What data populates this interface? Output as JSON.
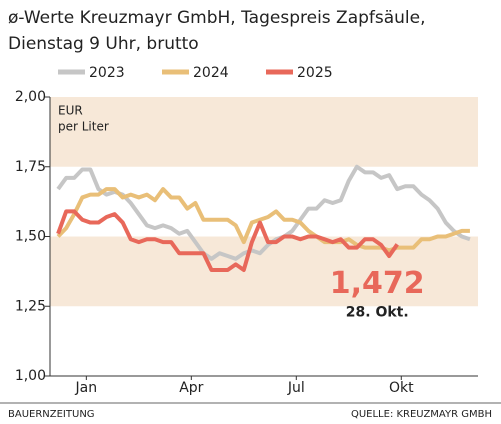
{
  "chart_data": {
    "type": "line",
    "title": [
      "ø-Werte Kreuzmayr GmbH, Tagespreis Zapfsäule,",
      "Dienstag 9 Uhr, brutto"
    ],
    "ylabel": [
      "EUR",
      "per Liter"
    ],
    "x": [
      1,
      2,
      3,
      4,
      5,
      6,
      7,
      8,
      9,
      10,
      11,
      12,
      13,
      14,
      15,
      16,
      17,
      18,
      19,
      20,
      21,
      22,
      23,
      24,
      25,
      26,
      27,
      28,
      29,
      30,
      31,
      32,
      33,
      34,
      35,
      36,
      37,
      38,
      39,
      40,
      41,
      42,
      43,
      44,
      45,
      46,
      47,
      48,
      49,
      50,
      51,
      52
    ],
    "xlim": [
      0,
      53
    ],
    "xticks": [
      {
        "value": 4.5,
        "label": "Jan"
      },
      {
        "value": 17.5,
        "label": "Apr"
      },
      {
        "value": 30.5,
        "label": "Jul"
      },
      {
        "value": 43.5,
        "label": "Okt"
      }
    ],
    "ylim": [
      1.0,
      2.0
    ],
    "yticks": [
      {
        "value": 1.0,
        "label": "1,00"
      },
      {
        "value": 1.25,
        "label": "1,25"
      },
      {
        "value": 1.5,
        "label": "1,50"
      },
      {
        "value": 1.75,
        "label": "1,75"
      },
      {
        "value": 2.0,
        "label": "2,00"
      }
    ],
    "band_color": "#f7e8d8",
    "series": [
      {
        "name": "2023",
        "color": "#c6c6c6",
        "values": [
          1.67,
          1.71,
          1.71,
          1.74,
          1.74,
          1.67,
          1.65,
          1.66,
          1.65,
          1.62,
          1.58,
          1.54,
          1.53,
          1.54,
          1.53,
          1.51,
          1.52,
          1.48,
          1.44,
          1.42,
          1.44,
          1.43,
          1.42,
          1.44,
          1.45,
          1.44,
          1.47,
          1.49,
          1.5,
          1.52,
          1.56,
          1.6,
          1.6,
          1.63,
          1.62,
          1.63,
          1.7,
          1.75,
          1.73,
          1.73,
          1.71,
          1.72,
          1.67,
          1.68,
          1.68,
          1.65,
          1.63,
          1.6,
          1.55,
          1.52,
          1.5,
          1.49
        ]
      },
      {
        "name": "2024",
        "color": "#e9bf78",
        "values": [
          1.5,
          1.53,
          1.58,
          1.64,
          1.65,
          1.65,
          1.67,
          1.67,
          1.64,
          1.65,
          1.64,
          1.65,
          1.63,
          1.67,
          1.64,
          1.64,
          1.6,
          1.62,
          1.56,
          1.56,
          1.56,
          1.56,
          1.54,
          1.48,
          1.55,
          1.56,
          1.57,
          1.59,
          1.56,
          1.56,
          1.55,
          1.52,
          1.5,
          1.48,
          1.48,
          1.48,
          1.49,
          1.47,
          1.46,
          1.46,
          1.46,
          1.45,
          1.46,
          1.46,
          1.46,
          1.49,
          1.49,
          1.5,
          1.5,
          1.51,
          1.52,
          1.52
        ]
      },
      {
        "name": "2025",
        "color": "#e8685a",
        "values": [
          1.51,
          1.59,
          1.59,
          1.56,
          1.55,
          1.55,
          1.57,
          1.58,
          1.55,
          1.49,
          1.48,
          1.49,
          1.49,
          1.48,
          1.48,
          1.44,
          1.44,
          1.44,
          1.44,
          1.38,
          1.38,
          1.38,
          1.4,
          1.38,
          1.48,
          1.55,
          1.48,
          1.48,
          1.5,
          1.5,
          1.49,
          1.5,
          1.5,
          1.49,
          1.48,
          1.49,
          1.46,
          1.46,
          1.49,
          1.49,
          1.47,
          1.43,
          1.472,
          null,
          null,
          null,
          null,
          null,
          null,
          null,
          null,
          null
        ]
      }
    ],
    "annotations": [
      "1,472",
      "28. Okt."
    ],
    "footer": {
      "left": "BAUERNZEITUNG",
      "right": "QUELLE: KREUZMAYR GMBH"
    }
  }
}
